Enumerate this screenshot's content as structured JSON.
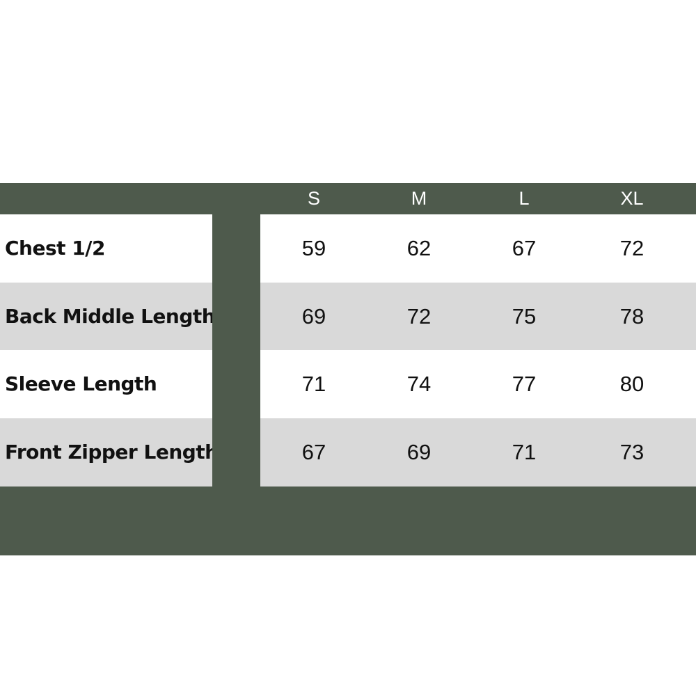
{
  "table": {
    "columns": [
      "S",
      "M",
      "L",
      "XL"
    ],
    "rows": [
      {
        "label": "Chest 1/2",
        "values": [
          59,
          62,
          67,
          72
        ]
      },
      {
        "label": "Back Middle Length",
        "values": [
          69,
          72,
          75,
          78
        ]
      },
      {
        "label": "Sleeve Length",
        "values": [
          71,
          74,
          77,
          80
        ]
      },
      {
        "label": "Front Zipper Length",
        "values": [
          67,
          69,
          71,
          73
        ]
      }
    ]
  }
}
